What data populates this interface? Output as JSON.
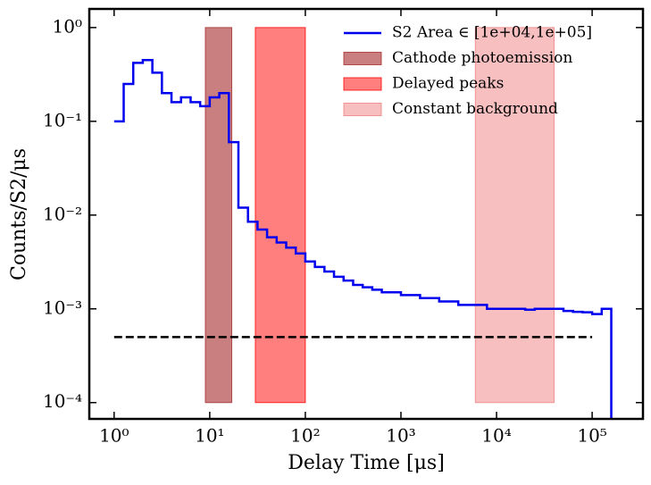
{
  "chart_data": {
    "type": "histogram",
    "xlabel": "Delay Time [μs]",
    "ylabel": "Counts/S2/μs",
    "xscale": "log",
    "yscale": "log",
    "xlim": [
      0.55,
      340000
    ],
    "ylim": [
      6.7e-05,
      1.58
    ],
    "xticks": [
      {
        "value": 1,
        "label": "10⁰"
      },
      {
        "value": 10,
        "label": "10¹"
      },
      {
        "value": 100,
        "label": "10²"
      },
      {
        "value": 1000,
        "label": "10³"
      },
      {
        "value": 10000,
        "label": "10⁴"
      },
      {
        "value": 100000,
        "label": "10⁵"
      }
    ],
    "yticks": [
      {
        "value": 0.0001,
        "label": "10⁻⁴"
      },
      {
        "value": 0.001,
        "label": "10⁻³"
      },
      {
        "value": 0.01,
        "label": "10⁻²"
      },
      {
        "value": 0.1,
        "label": "10⁻¹"
      },
      {
        "value": 1,
        "label": "10⁰"
      }
    ],
    "legend": "upper right",
    "series": [
      {
        "name": "S2 Area ∈ [1e+04,1e+05]",
        "color": "#0000ee",
        "bins": [
          1,
          1.259,
          1.585,
          1.995,
          2.512,
          3.162,
          3.981,
          5.012,
          6.31,
          7.943,
          10,
          12.59,
          15.85,
          19.95,
          25.12,
          31.62,
          39.81,
          50.12,
          63.1,
          79.43,
          100,
          125.9,
          158.5,
          199.5,
          251.2,
          316.2,
          398.1,
          501.2,
          631,
          794.3,
          1000,
          1259,
          1585,
          1995,
          2512,
          3162,
          3981,
          5012,
          6310,
          7943,
          10000,
          12590,
          15850,
          19950,
          25120,
          31620,
          39810,
          50120,
          63100,
          79430,
          100000,
          125900,
          158500
        ],
        "values": [
          0.1,
          0.25,
          0.42,
          0.45,
          0.33,
          0.2,
          0.16,
          0.18,
          0.16,
          0.145,
          0.18,
          0.2,
          0.06,
          0.012,
          0.0085,
          0.007,
          0.0058,
          0.0051,
          0.0045,
          0.0039,
          0.0032,
          0.0028,
          0.0025,
          0.0022,
          0.002,
          0.0018,
          0.0017,
          0.0016,
          0.0015,
          0.0015,
          0.0014,
          0.0014,
          0.0013,
          0.0013,
          0.0012,
          0.0012,
          0.0011,
          0.0011,
          0.0011,
          0.001,
          0.001,
          0.001,
          0.001,
          0.00098,
          0.001,
          0.001,
          0.001,
          0.00095,
          0.00093,
          0.00092,
          0.00088,
          0.001
        ]
      }
    ],
    "spans": [
      {
        "name": "Cathode photoemission",
        "color": "#a52a2a",
        "opacity": 0.6,
        "x": [
          9,
          17
        ],
        "y": [
          0.0001,
          1
        ]
      },
      {
        "name": "Delayed peaks",
        "color": "#ff0000",
        "opacity": 0.5,
        "x": [
          30,
          100
        ],
        "y": [
          0.0001,
          1
        ]
      },
      {
        "name": "Constant background",
        "color": "#f08080",
        "opacity": 0.5,
        "x": [
          6000,
          40000
        ],
        "y": [
          0.0001,
          1
        ]
      }
    ],
    "hlines": [
      {
        "y": 0.0005,
        "x": [
          1,
          100000
        ],
        "color": "#000000",
        "style": "dashed"
      }
    ]
  }
}
